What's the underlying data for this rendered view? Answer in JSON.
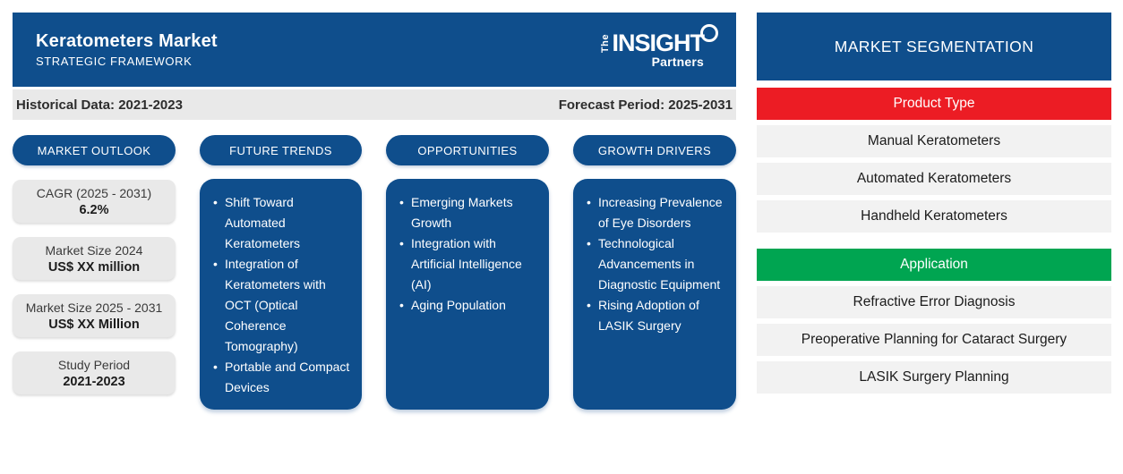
{
  "header": {
    "title": "Keratometers Market",
    "subtitle": "STRATEGIC FRAMEWORK",
    "logo": {
      "the": "The",
      "insight": "INSIGHT",
      "partners": "Partners"
    }
  },
  "info_bar": {
    "historical": "Historical Data: 2021-2023",
    "forecast": "Forecast Period: 2025-2031"
  },
  "columns": {
    "market_outlook": {
      "label": "MARKET OUTLOOK",
      "cards": [
        {
          "label": "CAGR (2025 - 2031)",
          "value": "6.2%"
        },
        {
          "label": "Market Size 2024",
          "value": "US$ XX million"
        },
        {
          "label": "Market Size 2025 - 2031",
          "value": "US$ XX Million"
        },
        {
          "label": "Study Period",
          "value": "2021-2023"
        }
      ]
    },
    "future_trends": {
      "label": "FUTURE TRENDS",
      "items": [
        "Shift Toward Automated Keratometers",
        "Integration of Keratometers with OCT (Optical Coherence Tomography)",
        "Portable and Compact Devices"
      ]
    },
    "opportunities": {
      "label": "OPPORTUNITIES",
      "items": [
        "Emerging Markets Growth",
        "Integration with Artificial Intelligence (AI)",
        "Aging Population"
      ]
    },
    "growth_drivers": {
      "label": "GROWTH DRIVERS",
      "items": [
        "Increasing Prevalence of Eye Disorders",
        "Technological Advancements in Diagnostic Equipment",
        "Rising Adoption of LASIK Surgery"
      ]
    }
  },
  "segmentation": {
    "title": "MARKET SEGMENTATION",
    "product_type": {
      "label": "Product Type",
      "color": "#ec1c24",
      "items": [
        "Manual Keratometers",
        "Automated Keratometers",
        "Handheld Keratometers"
      ]
    },
    "application": {
      "label": "Application",
      "color": "#00a551",
      "items": [
        "Refractive Error Diagnosis",
        "Preoperative Planning for Cataract Surgery",
        "LASIK Surgery Planning"
      ]
    }
  },
  "colors": {
    "brand_blue": "#0f4e8c",
    "product_type_red": "#ec1c24",
    "application_green": "#00a551"
  }
}
